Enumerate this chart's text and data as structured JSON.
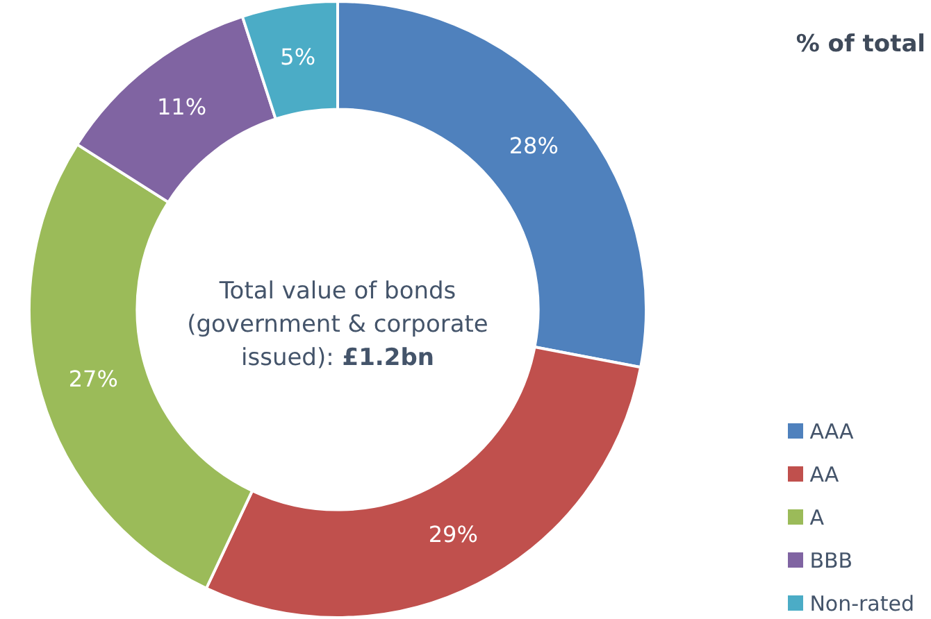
{
  "chart_data": {
    "type": "donut",
    "title": "% of total",
    "categories": [
      "AAA",
      "AA",
      "A",
      "BBB",
      "Non-rated"
    ],
    "values": [
      28,
      29,
      27,
      11,
      5
    ],
    "value_labels": [
      "28%",
      "29%",
      "27%",
      "11%",
      "5%"
    ],
    "colors": [
      "#4f81bd",
      "#c0504d",
      "#9bbb59",
      "#8064a2",
      "#4bacc6"
    ],
    "annotations": [
      "Total value of bonds (government & corporate issued):",
      "£1.2bn"
    ],
    "legend": "bottom right"
  }
}
